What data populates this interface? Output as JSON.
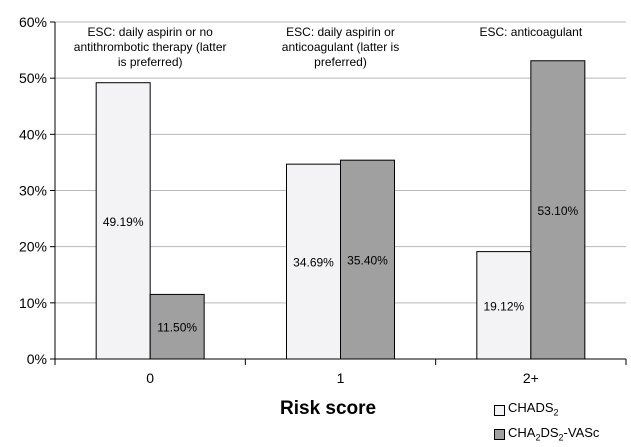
{
  "chart_data": {
    "type": "bar",
    "categories": [
      "0",
      "1",
      "2+"
    ],
    "series": [
      {
        "name": "CHADS2",
        "values": [
          49.19,
          34.69,
          19.12
        ],
        "labels": [
          "49.19%",
          "34.69%",
          "19.12%"
        ],
        "color": "#f3f3f6"
      },
      {
        "name": "CHA2DS2-VASc",
        "values": [
          11.5,
          35.4,
          53.1
        ],
        "labels": [
          "11.50%",
          "35.40%",
          "53.10%"
        ],
        "color": "#a0a0a0"
      }
    ],
    "annotations": [
      [
        "ESC: daily aspirin or no",
        "antithrombotic therapy (latter",
        "is preferred)"
      ],
      [
        "ESC: daily aspirin or",
        "anticoagulant (latter is",
        "preferred)"
      ],
      [
        "ESC: anticoagulant"
      ]
    ],
    "xlabel": "Risk score",
    "ylabel": "",
    "ylim": [
      0,
      60
    ],
    "yticks": [
      "0%",
      "10%",
      "20%",
      "30%",
      "40%",
      "50%",
      "60%"
    ],
    "grid": true,
    "legend_position": "bottom-right"
  },
  "legend": {
    "chads2": {
      "base": "CHADS",
      "sub": "2",
      "tail": ""
    },
    "cha2ds2vasc": {
      "p1": "CHA",
      "s1": "2",
      "p2": "DS",
      "s2": "2",
      "p3": "-VASc"
    }
  }
}
